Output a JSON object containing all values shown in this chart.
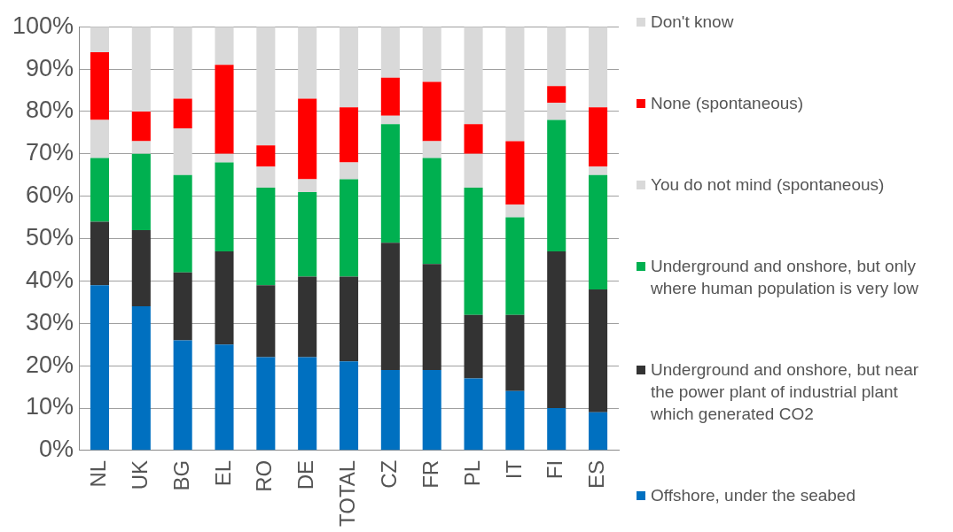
{
  "chart_data": {
    "type": "bar",
    "stacked": true,
    "categories": [
      "NL",
      "UK",
      "BG",
      "EL",
      "RO",
      "DE",
      "TOTAL",
      "CZ",
      "FR",
      "PL",
      "IT",
      "FI",
      "ES"
    ],
    "series": [
      {
        "name": "Offshore, under the seabed",
        "color": "#0070c0",
        "values": [
          39,
          34,
          26,
          25,
          22,
          22,
          21,
          19,
          19,
          17,
          14,
          10,
          9
        ]
      },
      {
        "name": "Underground and onshore, but near the power plant of industrial plant which generated CO2",
        "color": "#333333",
        "values": [
          15,
          18,
          16,
          22,
          17,
          19,
          20,
          30,
          25,
          15,
          18,
          37,
          29
        ]
      },
      {
        "name": "Underground and onshore, but only where human population is very low",
        "color": "#00b050",
        "values": [
          15,
          18,
          23,
          21,
          23,
          20,
          23,
          28,
          25,
          30,
          23,
          31,
          27
        ]
      },
      {
        "name": "You do not mind (spontaneous)",
        "color": "#d9d9d9",
        "values": [
          9,
          3,
          11,
          2,
          5,
          3,
          4,
          2,
          4,
          8,
          3,
          4,
          2
        ]
      },
      {
        "name": "None (spontaneous)",
        "color": "#ff0000",
        "values": [
          16,
          7,
          7,
          21,
          5,
          19,
          13,
          9,
          14,
          7,
          15,
          4,
          14
        ]
      },
      {
        "name": "Don't know",
        "color": "#d9d9d9",
        "values": [
          6,
          20,
          17,
          9,
          28,
          17,
          19,
          12,
          13,
          23,
          27,
          14,
          19
        ]
      }
    ],
    "ylim": [
      0,
      100
    ],
    "yticks": [
      {
        "value": 0,
        "label": "0%"
      },
      {
        "value": 10,
        "label": "10%"
      },
      {
        "value": 20,
        "label": "20%"
      },
      {
        "value": 30,
        "label": "30%"
      },
      {
        "value": 40,
        "label": "40%"
      },
      {
        "value": 50,
        "label": "50%"
      },
      {
        "value": 60,
        "label": "60%"
      },
      {
        "value": 70,
        "label": "70%"
      },
      {
        "value": 80,
        "label": "80%"
      },
      {
        "value": 90,
        "label": "90%"
      },
      {
        "value": 100,
        "label": "100%"
      }
    ],
    "grid": "y",
    "legend": "right"
  }
}
